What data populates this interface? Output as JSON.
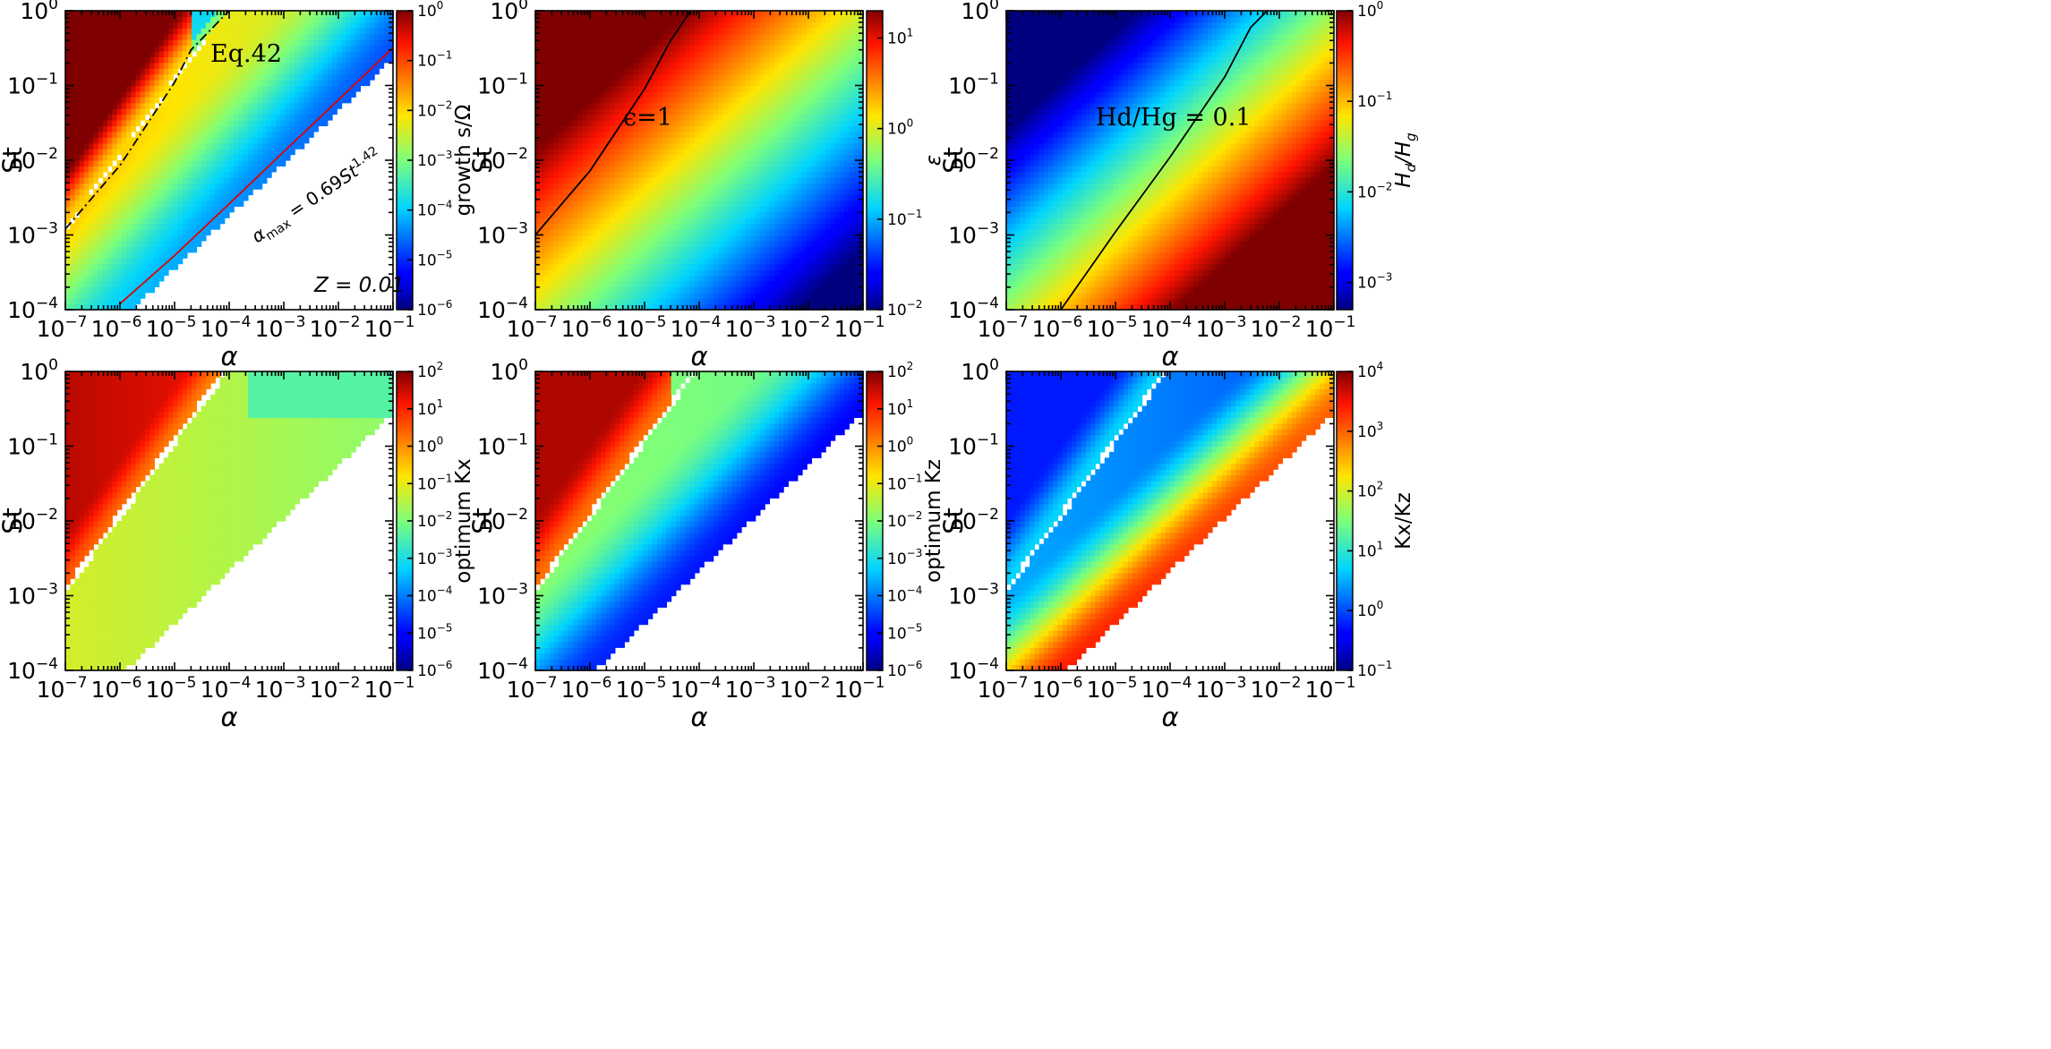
{
  "chart_data": [
    {
      "type": "heatmap",
      "xlabel": "α",
      "ylabel": "St",
      "x_scale": "log",
      "xlim": [
        1e-07,
        0.1
      ],
      "y_scale": "log",
      "ylim": [
        0.0001,
        1
      ],
      "x_ticks": [
        "10",
        "10",
        "10",
        "10",
        "10",
        "10",
        "10"
      ],
      "x_ticks_exp": [
        "−7",
        "−6",
        "−5",
        "−4",
        "−3",
        "−2",
        "−1"
      ],
      "y_ticks": [
        "10",
        "10",
        "10",
        "10",
        "10"
      ],
      "y_ticks_exp": [
        "−4",
        "−3",
        "−2",
        "−1",
        "0"
      ],
      "colorbar": {
        "label": "growth s/Ω",
        "scale": "log",
        "range": [
          1e-06,
          1
        ],
        "ticks": [
          "10",
          "10",
          "10",
          "10",
          "10",
          "10",
          "10"
        ],
        "ticks_exp": [
          "0",
          "−1",
          "−2",
          "−3",
          "−4",
          "−5",
          "−6"
        ]
      },
      "annotations": {
        "eq": "Eq.42",
        "fit": "α",
        "fit_sub": "max",
        "fit_mid": " = 0.69",
        "fit_st": "St",
        "fit_exp": "1.42",
        "z": "Z = 0.01"
      },
      "curves": {
        "alpha_max_St": [
          [
            1e-06,
            0.00012
          ],
          [
            1e-05,
            0.00053
          ],
          [
            0.0001,
            0.0026
          ],
          [
            0.001,
            0.013
          ],
          [
            0.01,
            0.064
          ],
          [
            0.1,
            0.32
          ]
        ],
        "eq42_St": [
          [
            1e-07,
            0.0012
          ],
          [
            1e-06,
            0.0085
          ],
          [
            1e-05,
            0.11
          ],
          [
            2e-05,
            0.3
          ],
          [
            0.0001,
            1.0
          ]
        ]
      }
    },
    {
      "type": "heatmap",
      "xlabel": "α",
      "ylabel": "St",
      "x_scale": "log",
      "xlim": [
        1e-07,
        0.1
      ],
      "y_scale": "log",
      "ylim": [
        0.0001,
        1
      ],
      "x_ticks": [
        "10",
        "10",
        "10",
        "10",
        "10",
        "10",
        "10"
      ],
      "x_ticks_exp": [
        "−7",
        "−6",
        "−5",
        "−4",
        "−3",
        "−2",
        "−1"
      ],
      "y_ticks": [
        "10",
        "10",
        "10",
        "10",
        "10"
      ],
      "y_ticks_exp": [
        "−4",
        "−3",
        "−2",
        "−1",
        "0"
      ],
      "colorbar": {
        "label": "ε",
        "scale": "log",
        "range": [
          0.01,
          20
        ],
        "ticks": [
          "10",
          "10",
          "10",
          "10"
        ],
        "ticks_exp": [
          "1",
          "0",
          "−1",
          "−2"
        ]
      },
      "annotations": {
        "contour": "ϵ=1"
      },
      "curves": {
        "eps_1_St": [
          [
            1e-07,
            0.001
          ],
          [
            1e-06,
            0.0072
          ],
          [
            1e-05,
            0.09
          ],
          [
            3e-05,
            0.4
          ],
          [
            7e-05,
            1.0
          ]
        ]
      }
    },
    {
      "type": "heatmap",
      "xlabel": "α",
      "ylabel": "St",
      "x_scale": "log",
      "xlim": [
        1e-07,
        0.1
      ],
      "y_scale": "log",
      "ylim": [
        0.0001,
        1
      ],
      "x_ticks": [
        "10",
        "10",
        "10",
        "10",
        "10",
        "10",
        "10"
      ],
      "x_ticks_exp": [
        "−7",
        "−6",
        "−5",
        "−4",
        "−3",
        "−2",
        "−1"
      ],
      "y_ticks": [
        "10",
        "10",
        "10",
        "10",
        "10"
      ],
      "y_ticks_exp": [
        "−4",
        "−3",
        "−2",
        "−1",
        "0"
      ],
      "colorbar": {
        "label": "H",
        "label_sub": "d",
        "label_mid": "/H",
        "label_sub2": "g",
        "scale": "log",
        "range": [
          0.0005,
          1
        ],
        "ticks": [
          "10",
          "10",
          "10",
          "10"
        ],
        "ticks_exp": [
          "0",
          "−1",
          "−2",
          "−3"
        ]
      },
      "annotations": {
        "contour": "Hd/Hg = 0.1"
      },
      "curves": {
        "hd_hg_0.1_St": [
          [
            1e-06,
            0.0001
          ],
          [
            1e-05,
            0.0011
          ],
          [
            0.0001,
            0.011
          ],
          [
            0.001,
            0.13
          ],
          [
            0.003,
            0.6
          ],
          [
            0.006,
            1.0
          ]
        ]
      }
    },
    {
      "type": "heatmap",
      "xlabel": "α",
      "ylabel": "St",
      "x_scale": "log",
      "xlim": [
        1e-07,
        0.1
      ],
      "y_scale": "log",
      "ylim": [
        0.0001,
        1
      ],
      "x_ticks": [
        "10",
        "10",
        "10",
        "10",
        "10",
        "10",
        "10"
      ],
      "x_ticks_exp": [
        "−7",
        "−6",
        "−5",
        "−4",
        "−3",
        "−2",
        "−1"
      ],
      "y_ticks": [
        "10",
        "10",
        "10",
        "10",
        "10"
      ],
      "y_ticks_exp": [
        "−4",
        "−3",
        "−2",
        "−1",
        "0"
      ],
      "colorbar": {
        "label": "optimum Kx",
        "scale": "log",
        "range": [
          1e-06,
          100
        ],
        "ticks": [
          "10",
          "10",
          "10",
          "10",
          "10",
          "10",
          "10",
          "10",
          "10"
        ],
        "ticks_exp": [
          "2",
          "1",
          "0",
          "−1",
          "−2",
          "−3",
          "−4",
          "−5",
          "−6"
        ]
      }
    },
    {
      "type": "heatmap",
      "xlabel": "α",
      "ylabel": "St",
      "x_scale": "log",
      "xlim": [
        1e-07,
        0.1
      ],
      "y_scale": "log",
      "ylim": [
        0.0001,
        1
      ],
      "x_ticks": [
        "10",
        "10",
        "10",
        "10",
        "10",
        "10",
        "10"
      ],
      "x_ticks_exp": [
        "−7",
        "−6",
        "−5",
        "−4",
        "−3",
        "−2",
        "−1"
      ],
      "y_ticks": [
        "10",
        "10",
        "10",
        "10",
        "10"
      ],
      "y_ticks_exp": [
        "−4",
        "−3",
        "−2",
        "−1",
        "0"
      ],
      "colorbar": {
        "label": "optimum Kz",
        "scale": "log",
        "range": [
          1e-06,
          100
        ],
        "ticks": [
          "10",
          "10",
          "10",
          "10",
          "10",
          "10",
          "10",
          "10",
          "10"
        ],
        "ticks_exp": [
          "2",
          "1",
          "0",
          "−1",
          "−2",
          "−3",
          "−4",
          "−5",
          "−6"
        ]
      }
    },
    {
      "type": "heatmap",
      "xlabel": "α",
      "ylabel": "St",
      "x_scale": "log",
      "xlim": [
        1e-07,
        0.1
      ],
      "y_scale": "log",
      "ylim": [
        0.0001,
        1
      ],
      "x_ticks": [
        "10",
        "10",
        "10",
        "10",
        "10",
        "10",
        "10"
      ],
      "x_ticks_exp": [
        "−7",
        "−6",
        "−5",
        "−4",
        "−3",
        "−2",
        "−1"
      ],
      "y_ticks": [
        "10",
        "10",
        "10",
        "10",
        "10"
      ],
      "y_ticks_exp": [
        "−4",
        "−3",
        "−2",
        "−1",
        "0"
      ],
      "colorbar": {
        "label": "Kx/Kz",
        "scale": "log",
        "range": [
          0.1,
          10000
        ],
        "ticks": [
          "10",
          "10",
          "10",
          "10",
          "10",
          "10"
        ],
        "ticks_exp": [
          "4",
          "3",
          "2",
          "1",
          "0",
          "−1"
        ]
      }
    }
  ]
}
